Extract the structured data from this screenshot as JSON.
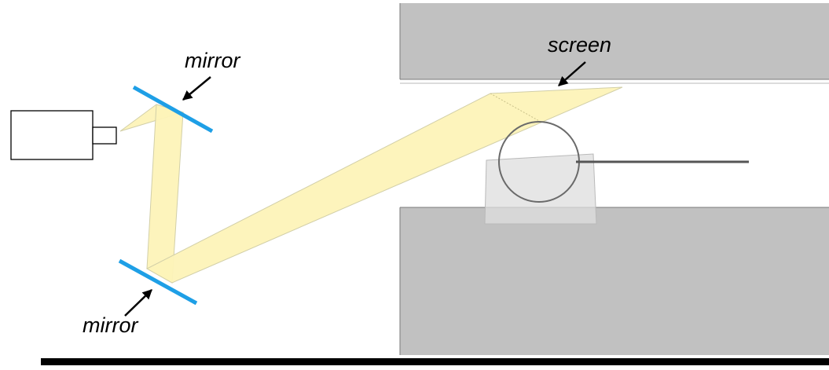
{
  "labels": {
    "mirror_top": "mirror",
    "mirror_bottom": "mirror",
    "screen": "screen"
  },
  "colors": {
    "beam_fill": "#fdf3b8",
    "beam_stroke": "#d2cfa8",
    "mirror": "#1e9fe6",
    "block_fill": "#c1c1c1",
    "block_edge": "#7a7a7a",
    "base_line": "#000000",
    "holder_fill": "#dddddd",
    "lens": "#6a6a6a",
    "rod": "#555555"
  },
  "icons": {
    "projector": "projector-icon",
    "arrow": "arrow-icon"
  }
}
